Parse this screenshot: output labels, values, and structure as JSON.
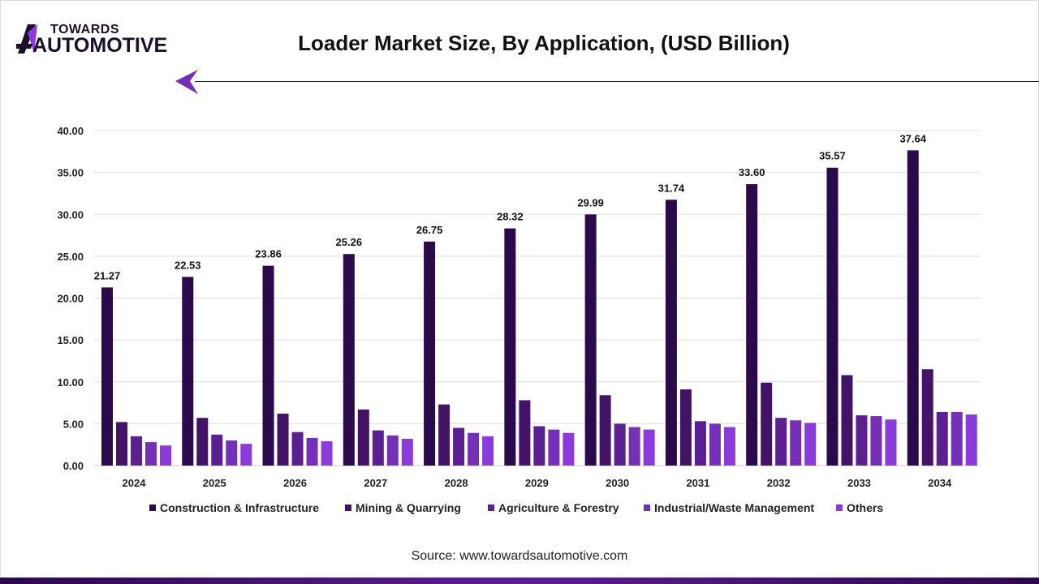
{
  "brand": {
    "line1": "TOWARDS",
    "line2": "AUTOMOTIVE"
  },
  "source": "Source: www.towardsautomotive.com",
  "chart_data": {
    "type": "bar",
    "title": "Loader Market Size, By Application, (USD Billion)",
    "categories": [
      "2024",
      "2025",
      "2026",
      "2027",
      "2028",
      "2029",
      "2030",
      "2031",
      "2032",
      "2033",
      "2034"
    ],
    "ylim": [
      0,
      40
    ],
    "yticks": [
      "0.00",
      "5.00",
      "10.00",
      "15.00",
      "20.00",
      "25.00",
      "30.00",
      "35.00",
      "40.00"
    ],
    "grid": true,
    "legend": "bottom",
    "series": [
      {
        "name": "Construction & Infrastructure",
        "color": "#2a0a4a",
        "values": [
          21.27,
          22.53,
          23.86,
          25.26,
          26.75,
          28.32,
          29.99,
          31.74,
          33.6,
          35.57,
          37.64
        ],
        "labels": [
          "21.27",
          "22.53",
          "23.86",
          "25.26",
          "26.75",
          "28.32",
          "29.99",
          "31.74",
          "33.60",
          "35.57",
          "37.64"
        ]
      },
      {
        "name": "Mining & Quarrying",
        "color": "#431466",
        "values": [
          5.2,
          5.7,
          6.2,
          6.7,
          7.3,
          7.8,
          8.4,
          9.1,
          9.9,
          10.8,
          11.5
        ]
      },
      {
        "name": "Agriculture & Forestry",
        "color": "#5a1f91",
        "values": [
          3.5,
          3.7,
          4.0,
          4.2,
          4.5,
          4.7,
          5.0,
          5.3,
          5.7,
          6.0,
          6.4
        ]
      },
      {
        "name": "Industrial/Waste Management",
        "color": "#7530b8",
        "values": [
          2.8,
          3.0,
          3.3,
          3.6,
          3.9,
          4.3,
          4.6,
          5.0,
          5.4,
          5.9,
          6.4
        ]
      },
      {
        "name": "Others",
        "color": "#8c3bdb",
        "values": [
          2.4,
          2.6,
          2.9,
          3.2,
          3.5,
          3.9,
          4.3,
          4.6,
          5.1,
          5.5,
          6.1
        ]
      }
    ]
  }
}
